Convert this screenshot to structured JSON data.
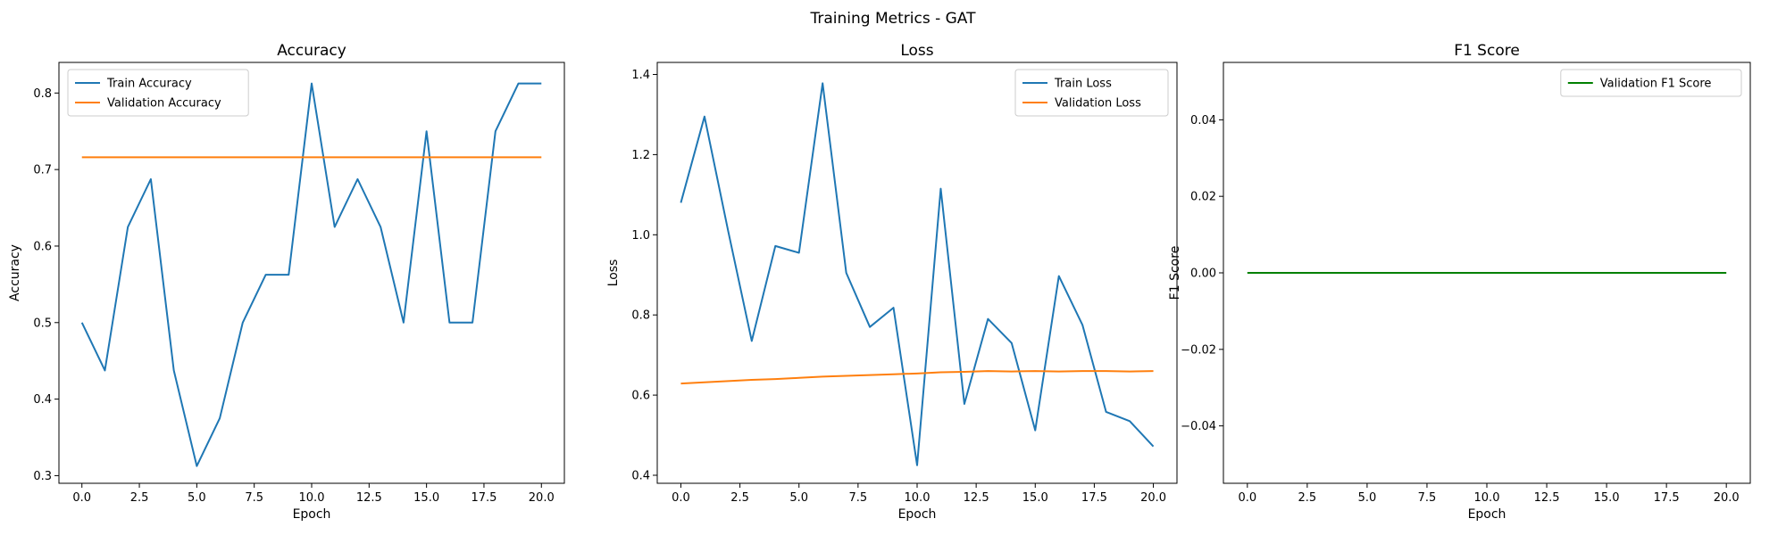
{
  "figure": {
    "title": "Training Metrics - GAT"
  },
  "chart_data": [
    {
      "type": "line",
      "title": "Accuracy",
      "xlabel": "Epoch",
      "ylabel": "Accuracy",
      "xlim": [
        -1,
        21
      ],
      "ylim": [
        0.29,
        0.84
      ],
      "x_ticks": [
        0,
        2.5,
        5,
        7.5,
        10,
        12.5,
        15,
        17.5,
        20
      ],
      "x_tick_labels": [
        "0.0",
        "2.5",
        "5.0",
        "7.5",
        "10.0",
        "12.5",
        "15.0",
        "17.5",
        "20.0"
      ],
      "y_ticks": [
        0.3,
        0.4,
        0.5,
        0.6,
        0.7,
        0.8
      ],
      "y_tick_labels": [
        "0.3",
        "0.4",
        "0.5",
        "0.6",
        "0.7",
        "0.8"
      ],
      "grid": false,
      "legend_position": "top-left",
      "x": [
        0,
        1,
        2,
        3,
        4,
        5,
        6,
        7,
        8,
        9,
        10,
        11,
        12,
        13,
        14,
        15,
        16,
        17,
        18,
        19,
        20
      ],
      "series": [
        {
          "name": "Train Accuracy",
          "color": "#1f77b4",
          "values": [
            0.5,
            0.4375,
            0.625,
            0.6875,
            0.4375,
            0.3125,
            0.375,
            0.5,
            0.5625,
            0.5625,
            0.8125,
            0.625,
            0.6875,
            0.625,
            0.5,
            0.75,
            0.5,
            0.5,
            0.75,
            0.8125,
            0.8125
          ]
        },
        {
          "name": "Validation Accuracy",
          "color": "#ff7f0e",
          "values": [
            0.716,
            0.716,
            0.716,
            0.716,
            0.716,
            0.716,
            0.716,
            0.716,
            0.716,
            0.716,
            0.716,
            0.716,
            0.716,
            0.716,
            0.716,
            0.716,
            0.716,
            0.716,
            0.716,
            0.716,
            0.716
          ]
        }
      ]
    },
    {
      "type": "line",
      "title": "Loss",
      "xlabel": "Epoch",
      "ylabel": "Loss",
      "xlim": [
        -1,
        21
      ],
      "ylim": [
        0.38,
        1.43
      ],
      "x_ticks": [
        0,
        2.5,
        5,
        7.5,
        10,
        12.5,
        15,
        17.5,
        20
      ],
      "x_tick_labels": [
        "0.0",
        "2.5",
        "5.0",
        "7.5",
        "10.0",
        "12.5",
        "15.0",
        "17.5",
        "20.0"
      ],
      "y_ticks": [
        0.4,
        0.6,
        0.8,
        1.0,
        1.2,
        1.4
      ],
      "y_tick_labels": [
        "0.4",
        "0.6",
        "0.8",
        "1.0",
        "1.2",
        "1.4"
      ],
      "grid": false,
      "legend_position": "top-right",
      "x": [
        0,
        1,
        2,
        3,
        4,
        5,
        6,
        7,
        8,
        9,
        10,
        11,
        12,
        13,
        14,
        15,
        16,
        17,
        18,
        19,
        20
      ],
      "series": [
        {
          "name": "Train Loss",
          "color": "#1f77b4",
          "values": [
            1.08,
            1.295,
            1.01,
            0.735,
            0.972,
            0.955,
            1.378,
            0.905,
            0.77,
            0.818,
            0.425,
            1.115,
            0.578,
            0.79,
            0.73,
            0.512,
            0.897,
            0.775,
            0.558,
            0.535,
            0.472
          ]
        },
        {
          "name": "Validation Loss",
          "color": "#ff7f0e",
          "values": [
            0.629,
            0.632,
            0.635,
            0.638,
            0.64,
            0.643,
            0.646,
            0.648,
            0.65,
            0.652,
            0.654,
            0.657,
            0.658,
            0.66,
            0.659,
            0.66,
            0.659,
            0.66,
            0.66,
            0.659,
            0.66
          ]
        }
      ]
    },
    {
      "type": "line",
      "title": "F1 Score",
      "xlabel": "Epoch",
      "ylabel": "F1 Score",
      "xlim": [
        -1,
        21
      ],
      "ylim": [
        -0.055,
        0.055
      ],
      "x_ticks": [
        0,
        2.5,
        5,
        7.5,
        10,
        12.5,
        15,
        17.5,
        20
      ],
      "x_tick_labels": [
        "0.0",
        "2.5",
        "5.0",
        "7.5",
        "10.0",
        "12.5",
        "15.0",
        "17.5",
        "20.0"
      ],
      "y_ticks": [
        -0.04,
        -0.02,
        0,
        0.02,
        0.04
      ],
      "y_tick_labels": [
        "−0.04",
        "−0.02",
        "0.00",
        "0.02",
        "0.04"
      ],
      "grid": false,
      "legend_position": "top-right",
      "x": [
        0,
        1,
        2,
        3,
        4,
        5,
        6,
        7,
        8,
        9,
        10,
        11,
        12,
        13,
        14,
        15,
        16,
        17,
        18,
        19,
        20
      ],
      "series": [
        {
          "name": "Validation F1 Score",
          "color": "#008000",
          "values": [
            0,
            0,
            0,
            0,
            0,
            0,
            0,
            0,
            0,
            0,
            0,
            0,
            0,
            0,
            0,
            0,
            0,
            0,
            0,
            0,
            0
          ]
        }
      ]
    }
  ]
}
